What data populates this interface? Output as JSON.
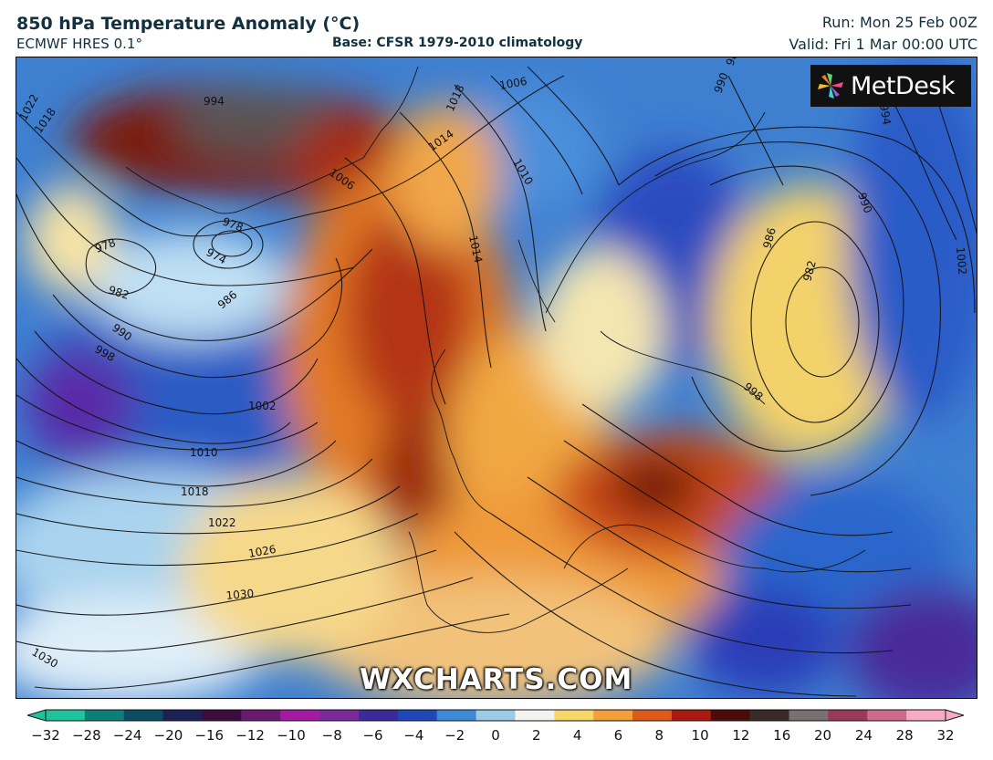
{
  "header": {
    "title": "850 hPa Temperature Anomaly (°C)",
    "model": "ECMWF HRES 0.1°",
    "base": "Base: CFSR 1979-2010 climatology",
    "run": "Run: Mon 25 Feb 00Z",
    "valid": "Valid: Fri 1 Mar 00:00 UTC"
  },
  "brand": {
    "name": "MetDesk"
  },
  "watermark": "WXCHARTS.COM",
  "legend": {
    "ticks": [
      "−32",
      "−28",
      "−24",
      "−20",
      "−16",
      "−12",
      "−10",
      "−8",
      "−6",
      "−4",
      "−2",
      "0",
      "2",
      "4",
      "6",
      "8",
      "10",
      "12",
      "16",
      "20",
      "24",
      "28",
      "32"
    ],
    "colors": [
      "#1fc39b",
      "#0c7f7a",
      "#0b4c62",
      "#1c2255",
      "#3b0d3f",
      "#6a1a6e",
      "#a31ba0",
      "#7a2a9a",
      "#3a2a9a",
      "#1f48b6",
      "#3e8ad4",
      "#9ccbe8",
      "#f4f3f0",
      "#f6d86a",
      "#f2a03a",
      "#dc5a1a",
      "#a81a10",
      "#4a0c0a",
      "#3a2a2a",
      "#7a7070",
      "#9a3a5a",
      "#d06a8a",
      "#f6aac4"
    ]
  },
  "isobars": [
    {
      "label": "1022"
    },
    {
      "label": "1018"
    },
    {
      "label": "994"
    },
    {
      "label": "978"
    },
    {
      "label": "974"
    },
    {
      "label": "978"
    },
    {
      "label": "982"
    },
    {
      "label": "986"
    },
    {
      "label": "990"
    },
    {
      "label": "998"
    },
    {
      "label": "1002"
    },
    {
      "label": "1010"
    },
    {
      "label": "1018"
    },
    {
      "label": "1022"
    },
    {
      "label": "1026"
    },
    {
      "label": "1030"
    },
    {
      "label": "1030"
    },
    {
      "label": "1006"
    },
    {
      "label": "1014"
    },
    {
      "label": "1018"
    },
    {
      "label": "1006"
    },
    {
      "label": "1010"
    },
    {
      "label": "1014"
    },
    {
      "label": "986"
    },
    {
      "label": "982"
    },
    {
      "label": "990"
    },
    {
      "label": "998"
    },
    {
      "label": "1002"
    },
    {
      "label": "994"
    },
    {
      "label": "990"
    },
    {
      "label": "986"
    }
  ]
}
